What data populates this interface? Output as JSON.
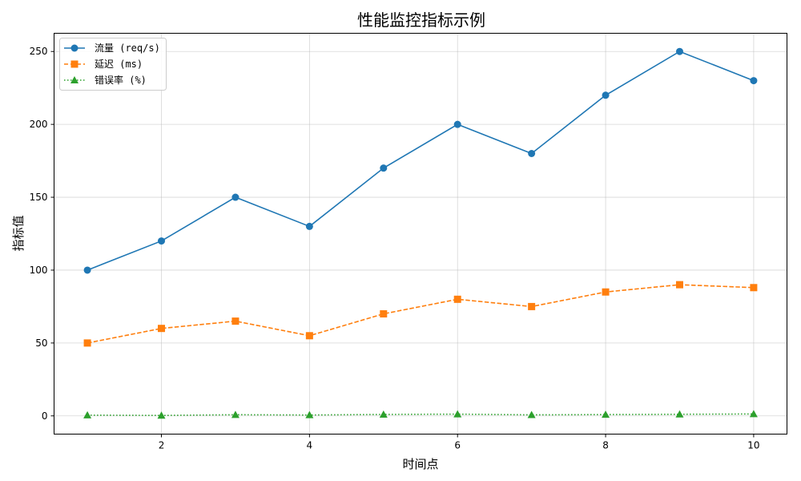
{
  "chart_data": {
    "type": "line",
    "title": "性能监控指标示例",
    "xlabel": "时间点",
    "ylabel": "指标值",
    "x": [
      1,
      2,
      3,
      4,
      5,
      6,
      7,
      8,
      9,
      10
    ],
    "xticks": [
      2,
      4,
      6,
      8,
      10
    ],
    "yticks": [
      0,
      50,
      100,
      150,
      200,
      250
    ],
    "xlim": [
      0.55,
      10.45
    ],
    "ylim": [
      -12.5,
      262.5
    ],
    "grid": true,
    "legend_position": "upper left",
    "series": [
      {
        "name": "流量 (req/s)",
        "color": "#1f77b4",
        "marker": "circle",
        "linestyle": "solid",
        "values": [
          100,
          120,
          150,
          130,
          170,
          200,
          180,
          220,
          250,
          230
        ]
      },
      {
        "name": "延迟 (ms)",
        "color": "#ff7f0e",
        "marker": "square",
        "linestyle": "dashed",
        "values": [
          50,
          60,
          65,
          55,
          70,
          80,
          75,
          85,
          90,
          88
        ]
      },
      {
        "name": "错误率 (%)",
        "color": "#2ca02c",
        "marker": "triangle",
        "linestyle": "dotted",
        "values": [
          0.5,
          0.3,
          0.8,
          0.6,
          1.0,
          1.2,
          0.7,
          0.9,
          1.1,
          1.3
        ]
      }
    ]
  }
}
